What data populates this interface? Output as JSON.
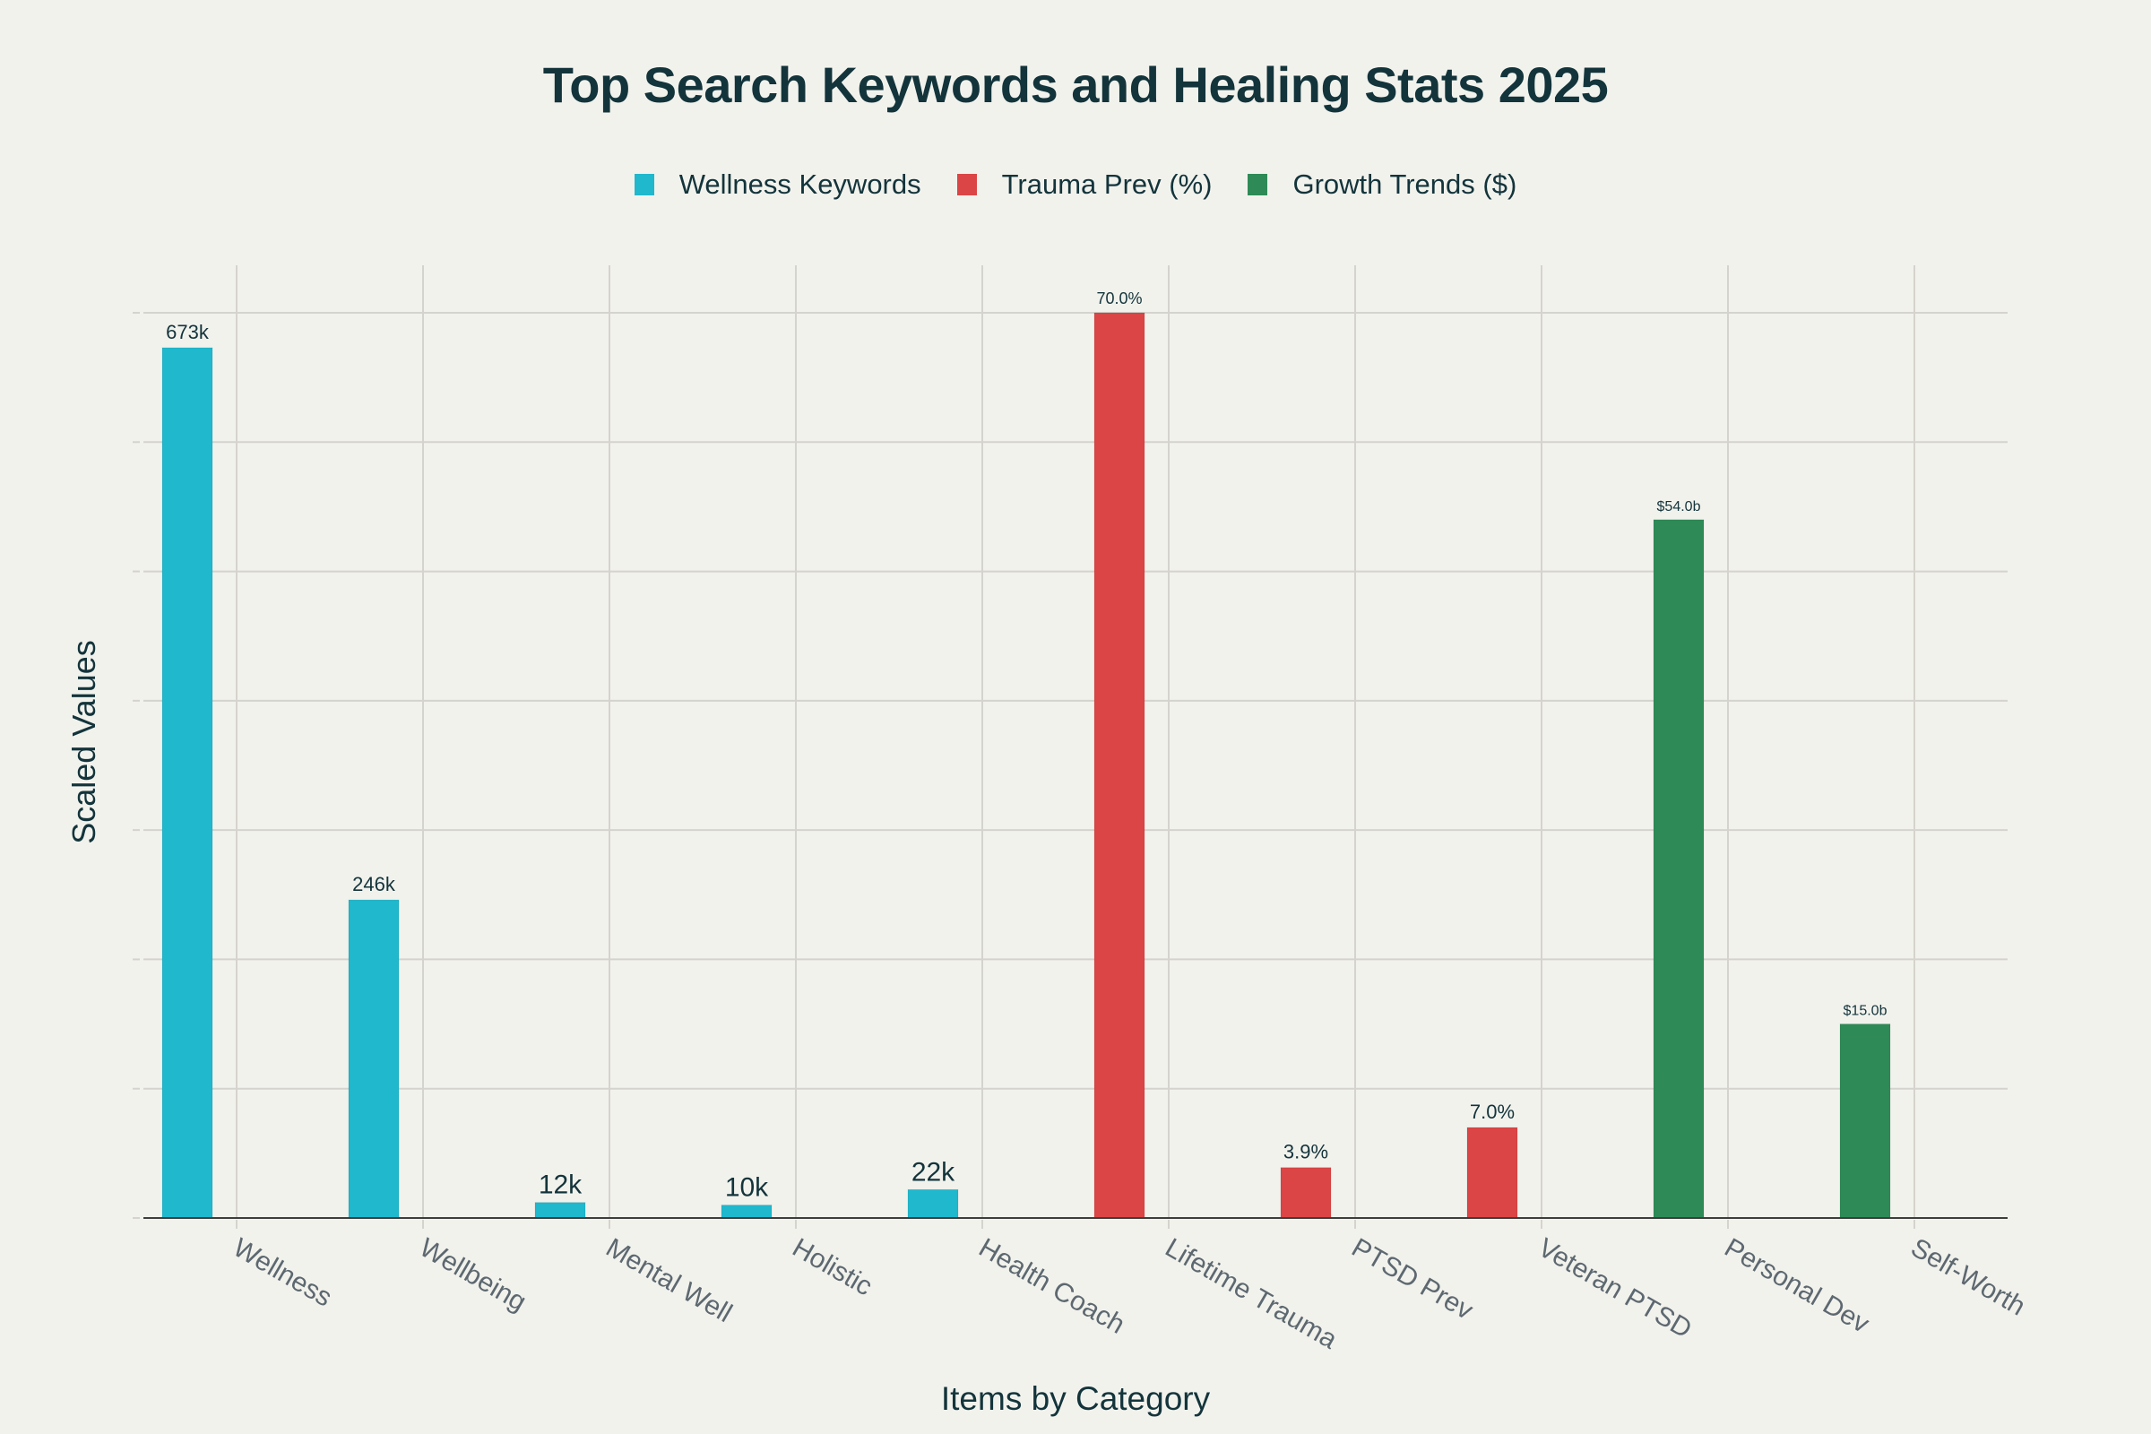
{
  "chart_data": {
    "type": "bar",
    "title": "Top Search Keywords and Healing Stats 2025",
    "xlabel": "Items by Category",
    "ylabel": "Scaled Values",
    "categories": [
      "Wellness",
      "Wellbeing",
      "Mental Well",
      "Holistic",
      "Health Coach",
      "Lifetime Trauma",
      "PTSD Prev",
      "Veteran PTSD",
      "Personal Dev",
      "Self-Worth"
    ],
    "series": [
      {
        "name": "Wellness Keywords",
        "color": "#1fb8cd",
        "values": [
          67.3,
          24.6,
          1.2,
          1.0,
          2.2,
          null,
          null,
          null,
          null,
          null
        ],
        "labels": [
          "673k",
          "246k",
          "12k",
          "10k",
          "22k",
          null,
          null,
          null,
          null,
          null
        ]
      },
      {
        "name": "Trauma Prev (%)",
        "color": "#db4545",
        "values": [
          null,
          null,
          null,
          null,
          null,
          70.0,
          3.9,
          7.0,
          null,
          null
        ],
        "labels": [
          null,
          null,
          null,
          null,
          null,
          "70.0%",
          "3.9%",
          "7.0%",
          null,
          null
        ]
      },
      {
        "name": "Growth Trends ($)",
        "color": "#2e8b57",
        "values": [
          null,
          null,
          null,
          null,
          null,
          null,
          null,
          null,
          54.0,
          15.0
        ],
        "labels": [
          null,
          null,
          null,
          null,
          null,
          null,
          null,
          null,
          "$54.0b",
          "$15.0b"
        ]
      }
    ],
    "ylim": [
      0,
      70
    ],
    "ytick_step": 10,
    "ytick_labels_visible": false,
    "grid": true,
    "legend_position": "top-center",
    "xtick_rotation": 30
  },
  "label_font_sizes": [
    22,
    22,
    30,
    30,
    30,
    18,
    22,
    22,
    16,
    16
  ],
  "colors": {
    "background": "#f2f2ed",
    "text": "#13343b",
    "grid": "#d5d3cd",
    "axis": "#3d3d3d",
    "tick_label": "#5d6870"
  }
}
